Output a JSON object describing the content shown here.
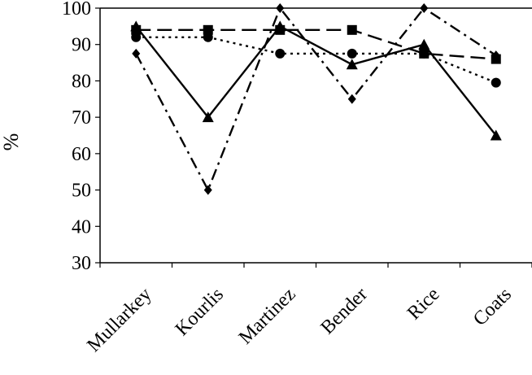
{
  "chart_data": {
    "type": "line",
    "title": "",
    "xlabel": "",
    "ylabel": "%",
    "ylim": [
      30,
      100
    ],
    "yticks": [
      30,
      40,
      50,
      60,
      70,
      80,
      90,
      100
    ],
    "grid": false,
    "legend": "none",
    "categories": [
      "Mullarkey",
      "Kourlis",
      "Martinez",
      "Bender",
      "Rice",
      "Coats"
    ],
    "series": [
      {
        "marker": "diamond",
        "line_style": "dash-dot",
        "color": "#000000",
        "values": [
          87.5,
          50,
          100,
          75,
          100,
          87
        ]
      },
      {
        "marker": "square",
        "line_style": "long-dash",
        "color": "#000000",
        "values": [
          94,
          94,
          94,
          94,
          87.5,
          86
        ]
      },
      {
        "marker": "triangle",
        "line_style": "solid",
        "color": "#000000",
        "values": [
          95,
          70,
          95,
          84.5,
          90,
          65
        ]
      },
      {
        "marker": "circle",
        "line_style": "dotted",
        "color": "#000000",
        "values": [
          92,
          92,
          87.5,
          87.5,
          87.5,
          79.5
        ]
      }
    ]
  }
}
